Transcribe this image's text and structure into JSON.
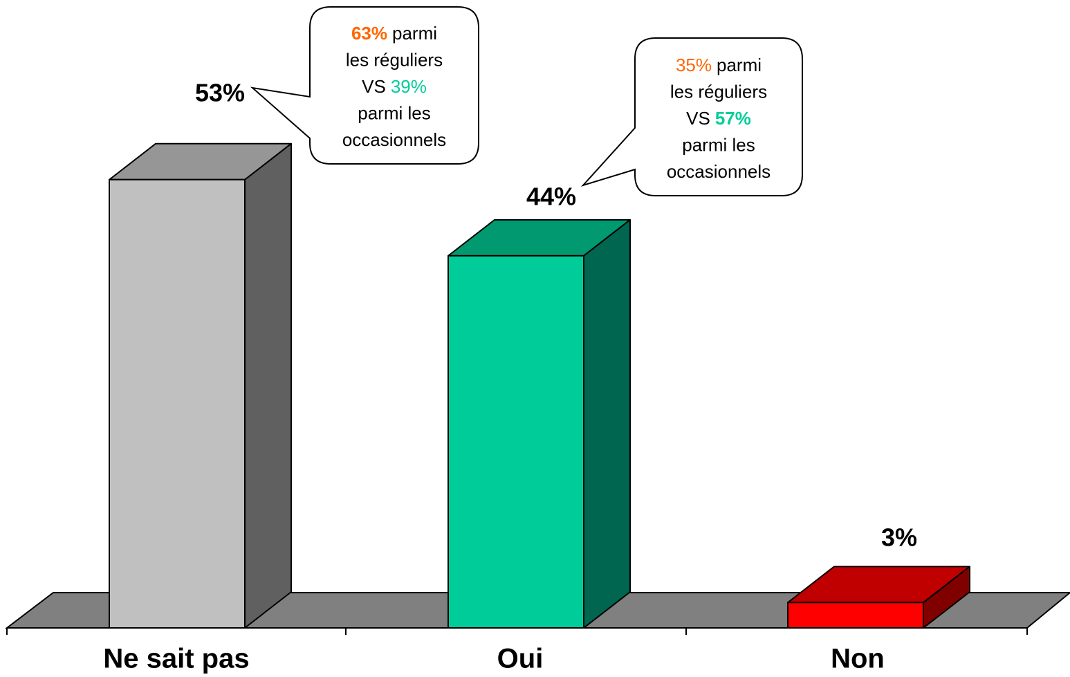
{
  "chart_data": {
    "type": "bar3d",
    "categories": [
      "Ne sait pas",
      "Oui",
      "Non"
    ],
    "values": [
      53,
      44,
      3
    ],
    "value_labels": [
      "53%",
      "44%",
      "3%"
    ],
    "colors": [
      {
        "front": "#c0c0c0",
        "top": "#969696",
        "side": "#606060"
      },
      {
        "front": "#00cc99",
        "top": "#009970",
        "side": "#006650"
      },
      {
        "front": "#ff0000",
        "top": "#c00000",
        "side": "#800000"
      }
    ],
    "annotations": [
      {
        "lines": [
          [
            {
              "text": "63%",
              "color": "#ff6600",
              "bold": true
            },
            {
              "text": "parmi"
            }
          ],
          [
            {
              "text": "les réguliers"
            }
          ],
          [
            {
              "text": "VS"
            },
            {
              "text": "39%",
              "color": "#00cc99"
            }
          ],
          [
            {
              "text": "parmi les"
            }
          ],
          [
            {
              "text": "occasionnels"
            }
          ]
        ]
      },
      {
        "lines": [
          [
            {
              "text": "35%",
              "color": "#ff6600"
            },
            {
              "text": "parmi"
            }
          ],
          [
            {
              "text": "les réguliers"
            }
          ],
          [
            {
              "text": "VS"
            },
            {
              "text": "57%",
              "color": "#00cc99",
              "bold": true
            }
          ],
          [
            {
              "text": "parmi les"
            }
          ],
          [
            {
              "text": "occasionnels"
            }
          ]
        ]
      }
    ]
  }
}
